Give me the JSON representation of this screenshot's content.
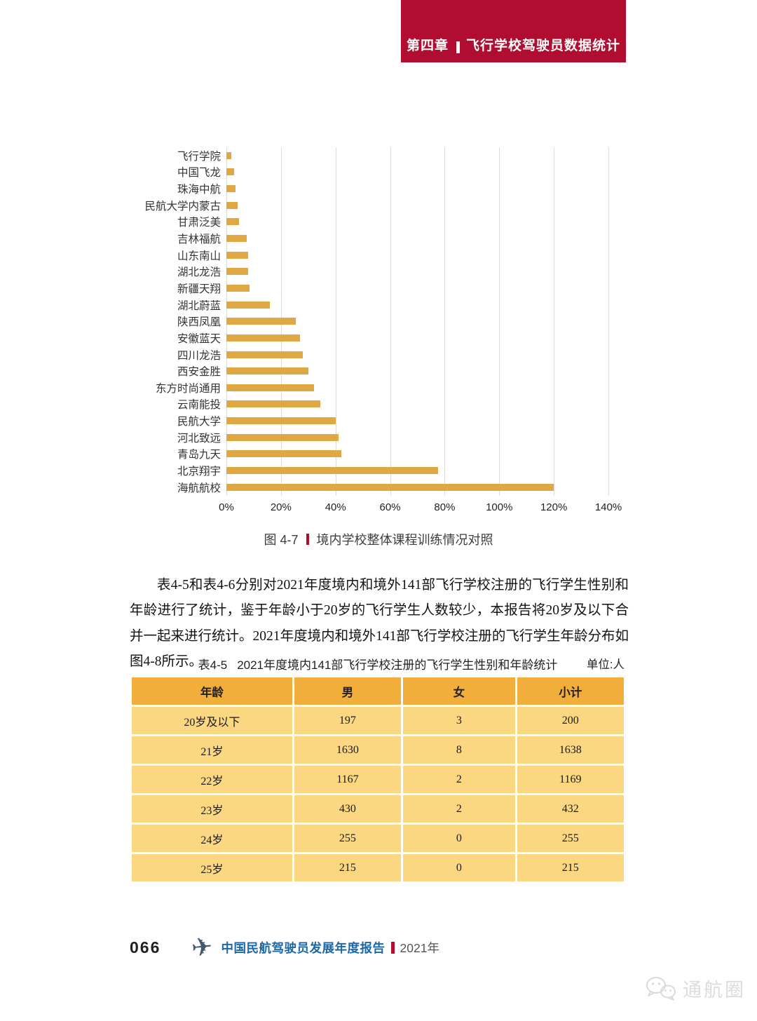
{
  "colors": {
    "accent_red": "#B00D31",
    "bar_gold": "#DFA845",
    "table_header_gold": "#F2AE3B",
    "table_row_gold": "#FBD781",
    "footer_blue": "#1C67A5",
    "grid_gray": "#DCDCDC"
  },
  "header": {
    "chapter": "第四章",
    "title": "飞行学校驾驶员数据统计"
  },
  "chart_data": {
    "type": "bar",
    "orientation": "horizontal",
    "title": "境内学校整体课程训练情况对照",
    "categories": [
      "飞行学院",
      "中国飞龙",
      "珠海中航",
      "民航大学内蒙古",
      "甘肃泛美",
      "吉林福航",
      "山东南山",
      "湖北龙浩",
      "新疆天翔",
      "湖北蔚蓝",
      "陕西凤凰",
      "安徽蓝天",
      "四川龙浩",
      "西安金胜",
      "东方时尚通用",
      "云南能投",
      "民航大学",
      "河北致远",
      "青岛九天",
      "北京翔宇",
      "海航航校"
    ],
    "values": [
      1.7,
      2.8,
      3.4,
      4.2,
      4.6,
      7.5,
      7.9,
      8,
      8.5,
      16,
      25.5,
      27,
      28,
      30,
      32,
      34.5,
      40,
      41,
      42,
      77.5,
      120
    ],
    "unit": "%",
    "xlim": [
      0,
      140
    ],
    "xticks": [
      0,
      20,
      40,
      60,
      80,
      100,
      120,
      140
    ],
    "xtick_labels": [
      "0%",
      "20%",
      "40%",
      "60%",
      "80%",
      "100%",
      "120%",
      "140%"
    ],
    "grid": "vertical"
  },
  "figure_caption": {
    "label": "图 4-7",
    "text": "境内学校整体课程训练情况对照"
  },
  "paragraph": "表4-5和表4-6分别对2021年度境内和境外141部飞行学校注册的飞行学生性别和年龄进行了统计，鉴于年龄小于20岁的飞行学生人数较少，本报告将20岁及以下合并一起来进行统计。2021年度境内和境外141部飞行学校注册的飞行学生年龄分布如图4-8所示。",
  "table": {
    "caption_label": "表4-5",
    "caption_text": "2021年度境内141部飞行学校注册的飞行学生性别和年龄统计",
    "unit": "单位:人",
    "headers": [
      "年龄",
      "男",
      "女",
      "小计"
    ],
    "rows": [
      [
        "20岁及以下",
        "197",
        "3",
        "200"
      ],
      [
        "21岁",
        "1630",
        "8",
        "1638"
      ],
      [
        "22岁",
        "1167",
        "2",
        "1169"
      ],
      [
        "23岁",
        "430",
        "2",
        "432"
      ],
      [
        "24岁",
        "255",
        "0",
        "255"
      ],
      [
        "25岁",
        "215",
        "0",
        "215"
      ]
    ]
  },
  "footer": {
    "page_number": "066",
    "report_title": "中国民航驾驶员发展年度报告",
    "year": "2021年"
  },
  "watermark": {
    "text": "通航圈"
  }
}
